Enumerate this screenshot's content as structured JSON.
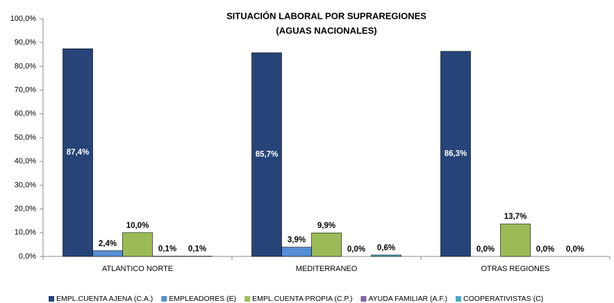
{
  "chart_data": {
    "type": "bar",
    "title": "SITUACIÓN  LABORAL POR SUPRAREGIONES",
    "subtitle": "(AGUAS NACIONALES)",
    "categories": [
      "ATLANTICO NORTE",
      "MEDITERRANEO",
      "OTRAS REGIONES"
    ],
    "series": [
      {
        "name": "EMPL.CUENTA AJENA (C.A.)",
        "color": "#264478",
        "values": [
          87.4,
          85.7,
          86.3
        ],
        "value_labels": [
          "87,4%",
          "85,7%",
          "86,3%"
        ]
      },
      {
        "name": "EMPLEADORES (E)",
        "color": "#558ed5",
        "values": [
          2.4,
          3.9,
          0.0
        ],
        "value_labels": [
          "2,4%",
          "3,9%",
          "0,0%"
        ]
      },
      {
        "name": "EMPL.CUENTA PROPIA (C.P.)",
        "color": "#9bbb59",
        "values": [
          10.0,
          9.9,
          13.7
        ],
        "value_labels": [
          "10,0%",
          "9,9%",
          "13,7%"
        ]
      },
      {
        "name": "AYUDA FAMILIAR (A.F.)",
        "color": "#8064a2",
        "values": [
          0.1,
          0.0,
          0.0
        ],
        "value_labels": [
          "0,1%",
          "0,0%",
          "0,0%"
        ]
      },
      {
        "name": "COOPERATIVISTAS (C)",
        "color": "#4bacc6",
        "values": [
          0.1,
          0.6,
          0.0
        ],
        "value_labels": [
          "0,1%",
          "0,6%",
          "0,0%"
        ]
      }
    ],
    "ylim": [
      0,
      100
    ],
    "yticks": [
      {
        "value": 0,
        "label": "0,0%"
      },
      {
        "value": 10,
        "label": "10,0%"
      },
      {
        "value": 20,
        "label": "20,0%"
      },
      {
        "value": 30,
        "label": "30,0%"
      },
      {
        "value": 40,
        "label": "40,0%"
      },
      {
        "value": 50,
        "label": "50,0%"
      },
      {
        "value": 60,
        "label": "60,0%"
      },
      {
        "value": 70,
        "label": "70,0%"
      },
      {
        "value": 80,
        "label": "80,0%"
      },
      {
        "value": 90,
        "label": "90,0%"
      },
      {
        "value": 100,
        "label": "100,0%"
      }
    ],
    "grid": false,
    "legend": "bottom"
  }
}
